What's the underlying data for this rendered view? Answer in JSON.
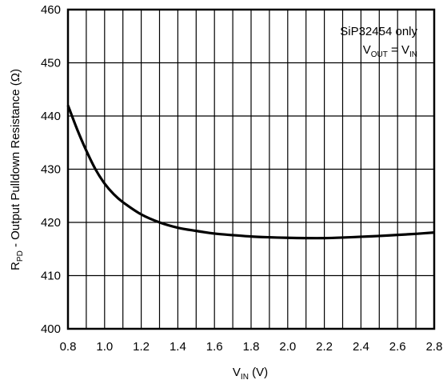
{
  "chart_data": {
    "type": "line",
    "xlabel": {
      "main": "V",
      "sub": "IN",
      "unit": " (V)"
    },
    "ylabel": {
      "main": "R",
      "sub": "PD",
      "rest": " - Output Pulldown Resistance (Ω)"
    },
    "xlim": [
      0.8,
      2.8
    ],
    "ylim": [
      400,
      460
    ],
    "xticks": [
      "0.8",
      "1.0",
      "1.2",
      "1.4",
      "1.6",
      "1.8",
      "2.0",
      "2.2",
      "2.4",
      "2.6",
      "2.8"
    ],
    "yticks": [
      "400",
      "410",
      "420",
      "430",
      "440",
      "450",
      "460"
    ],
    "x_grid_step": 0.1,
    "grid": true,
    "annotation": {
      "line1": "SiP32454 only",
      "line2": {
        "a": "V",
        "a_sub": "OUT",
        "eq": " = V",
        "b_sub": "IN"
      }
    },
    "series": [
      {
        "x": [
          0.8,
          0.85,
          0.9,
          0.95,
          1.0,
          1.05,
          1.1,
          1.2,
          1.3,
          1.4,
          1.5,
          1.6,
          1.7,
          1.8,
          1.9,
          2.0,
          2.1,
          2.2,
          2.3,
          2.4,
          2.5,
          2.6,
          2.7,
          2.8
        ],
        "y": [
          442.0,
          437.5,
          433.5,
          430.0,
          427.3,
          425.3,
          423.8,
          421.5,
          420.0,
          419.0,
          418.4,
          417.9,
          417.6,
          417.35,
          417.2,
          417.1,
          417.05,
          417.05,
          417.15,
          417.3,
          417.45,
          417.65,
          417.85,
          418.1
        ]
      }
    ]
  }
}
